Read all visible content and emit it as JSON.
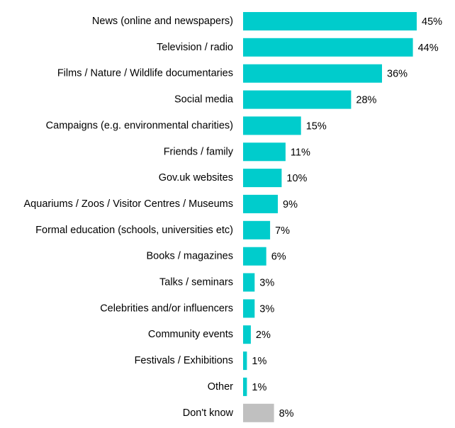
{
  "chart_data": {
    "type": "bar",
    "orientation": "horizontal",
    "categories": [
      "News (online and newspapers)",
      "Television / radio",
      "Films / Nature / Wildlife documentaries",
      "Social media",
      "Campaigns (e.g. environmental charities)",
      "Friends / family",
      "Gov.uk websites",
      "Aquariums / Zoos / Visitor Centres / Museums",
      "Formal education (schools, universities etc)",
      "Books / magazines",
      "Talks / seminars",
      "Celebrities and/or influencers",
      "Community events",
      "Festivals / Exhibitions",
      "Other",
      "Don't know"
    ],
    "values": [
      45,
      44,
      36,
      28,
      15,
      11,
      10,
      9,
      7,
      6,
      3,
      3,
      2,
      1,
      1,
      8
    ],
    "value_labels": [
      "45%",
      "44%",
      "36%",
      "28%",
      "15%",
      "11%",
      "10%",
      "9%",
      "7%",
      "6%",
      "3%",
      "3%",
      "2%",
      "1%",
      "1%",
      "8%"
    ],
    "bar_colors": [
      "#00CCCC",
      "#00CCCC",
      "#00CCCC",
      "#00CCCC",
      "#00CCCC",
      "#00CCCC",
      "#00CCCC",
      "#00CCCC",
      "#00CCCC",
      "#00CCCC",
      "#00CCCC",
      "#00CCCC",
      "#00CCCC",
      "#00CCCC",
      "#00CCCC",
      "#C0C0C0"
    ],
    "title": "",
    "xlabel": "",
    "ylabel": "",
    "xlim": [
      0,
      45
    ],
    "grid": false,
    "legend": "none"
  }
}
